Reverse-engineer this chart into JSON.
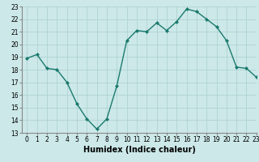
{
  "x": [
    0,
    1,
    2,
    3,
    4,
    5,
    6,
    7,
    8,
    9,
    10,
    11,
    12,
    13,
    14,
    15,
    16,
    17,
    18,
    19,
    20,
    21,
    22,
    23
  ],
  "y": [
    18.9,
    19.2,
    18.1,
    18.0,
    17.0,
    15.3,
    14.1,
    13.3,
    14.1,
    16.7,
    20.3,
    21.1,
    21.0,
    21.7,
    21.1,
    21.8,
    22.8,
    22.6,
    22.0,
    21.4,
    20.3,
    18.2,
    18.1,
    17.4
  ],
  "line_color": "#1a7a6e",
  "marker": "D",
  "marker_size": 2,
  "bg_color": "#cce8e8",
  "grid_color": "#aacfcf",
  "xlabel": "Humidex (Indice chaleur)",
  "ylim": [
    13,
    23
  ],
  "xlim": [
    -0.5,
    23
  ],
  "yticks": [
    13,
    14,
    15,
    16,
    17,
    18,
    19,
    20,
    21,
    22,
    23
  ],
  "xticks": [
    0,
    1,
    2,
    3,
    4,
    5,
    6,
    7,
    8,
    9,
    10,
    11,
    12,
    13,
    14,
    15,
    16,
    17,
    18,
    19,
    20,
    21,
    22,
    23
  ],
  "tick_fontsize": 5.5,
  "xlabel_fontsize": 7.0,
  "line_width": 1.0
}
